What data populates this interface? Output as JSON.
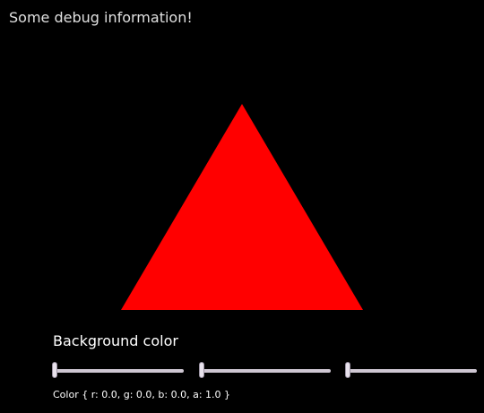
{
  "debug": {
    "text": "Some debug information!"
  },
  "triangle": {
    "color": "#ff0000"
  },
  "controls": {
    "title": "Background color",
    "sliders": [
      {
        "channel": "r",
        "value": 0.0
      },
      {
        "channel": "g",
        "value": 0.0
      },
      {
        "channel": "b",
        "value": 0.0
      }
    ],
    "status": "Color { r: 0.0, g: 0.0, b: 0.0, a: 1.0 }"
  },
  "colors": {
    "background": "#000000"
  }
}
